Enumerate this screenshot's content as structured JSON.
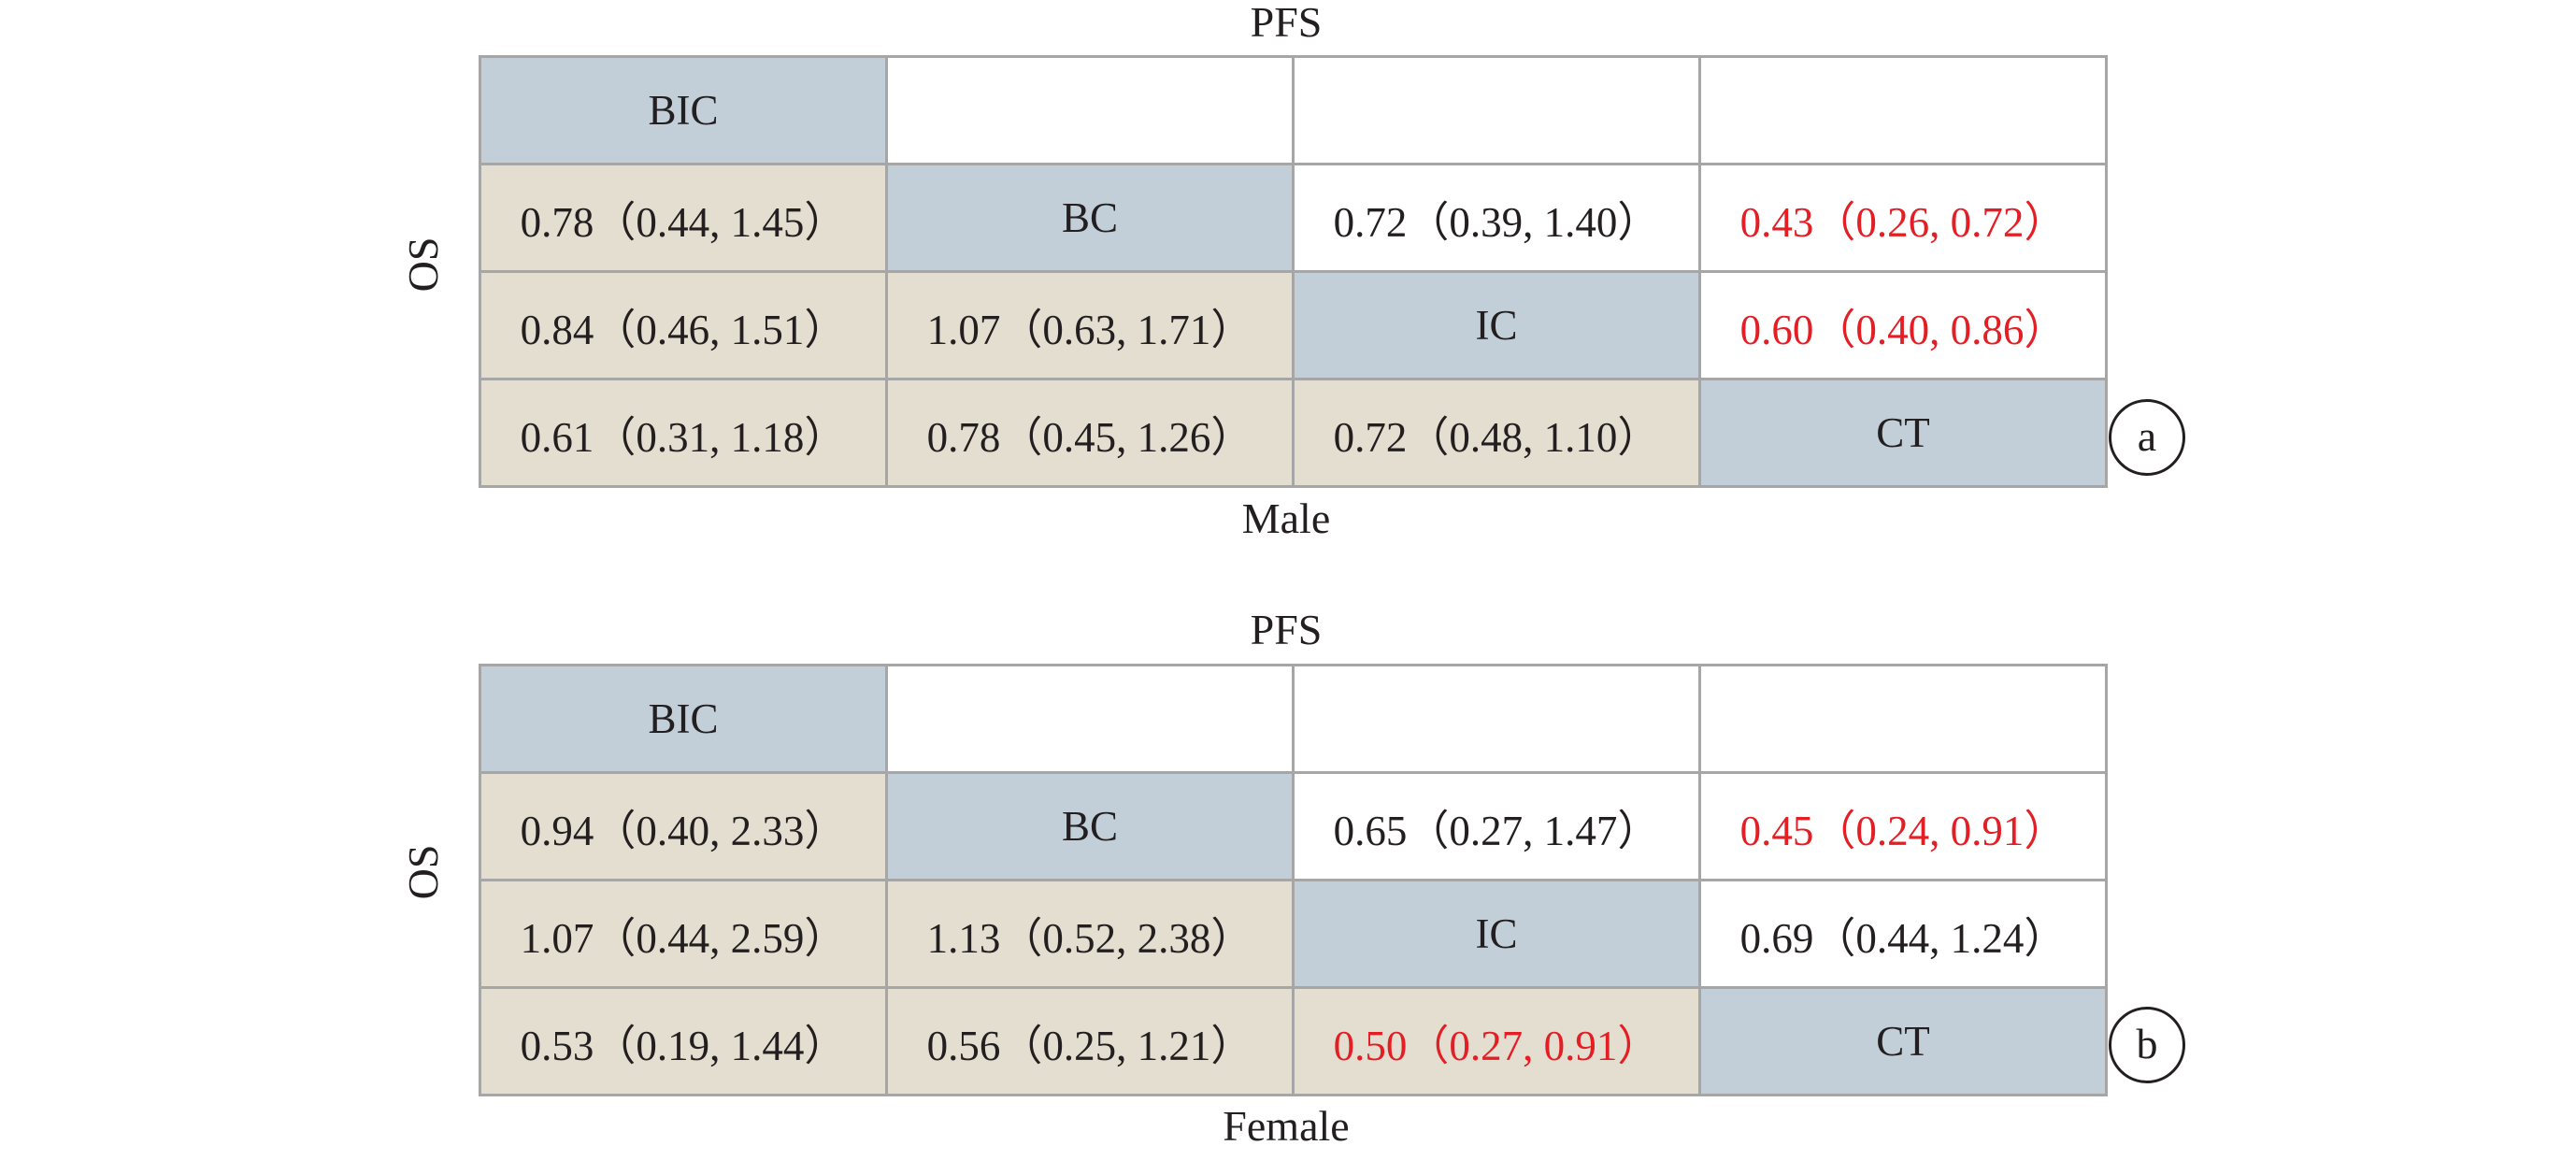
{
  "panels": [
    {
      "id": "a",
      "top_label": "PFS",
      "side_label": "OS",
      "bottom_label": "Male",
      "badge": "a",
      "rows": [
        [
          {
            "text": "BIC",
            "kind": "diag",
            "sig": false
          },
          {
            "text": "",
            "kind": "upper",
            "sig": false
          },
          {
            "text": "",
            "kind": "upper",
            "sig": false
          },
          {
            "text": "",
            "kind": "upper",
            "sig": false
          }
        ],
        [
          {
            "text": "0.78（0.44, 1.45）",
            "kind": "lower",
            "sig": false
          },
          {
            "text": "BC",
            "kind": "diag",
            "sig": false
          },
          {
            "text": "0.72（0.39, 1.40）",
            "kind": "upper",
            "sig": false
          },
          {
            "text": "0.43（0.26, 0.72）",
            "kind": "upper",
            "sig": true
          }
        ],
        [
          {
            "text": "0.84（0.46, 1.51）",
            "kind": "lower",
            "sig": false
          },
          {
            "text": "1.07（0.63, 1.71）",
            "kind": "lower",
            "sig": false
          },
          {
            "text": "IC",
            "kind": "diag",
            "sig": false
          },
          {
            "text": "0.60（0.40, 0.86）",
            "kind": "upper",
            "sig": true
          }
        ],
        [
          {
            "text": "0.61（0.31, 1.18）",
            "kind": "lower",
            "sig": false
          },
          {
            "text": "0.78（0.45, 1.26）",
            "kind": "lower",
            "sig": false
          },
          {
            "text": "0.72（0.48, 1.10）",
            "kind": "lower",
            "sig": false
          },
          {
            "text": "CT",
            "kind": "diag",
            "sig": false
          }
        ]
      ]
    },
    {
      "id": "b",
      "top_label": "PFS",
      "side_label": "OS",
      "bottom_label": "Female",
      "badge": "b",
      "rows": [
        [
          {
            "text": "BIC",
            "kind": "diag",
            "sig": false
          },
          {
            "text": "",
            "kind": "upper",
            "sig": false
          },
          {
            "text": "",
            "kind": "upper",
            "sig": false
          },
          {
            "text": "",
            "kind": "upper",
            "sig": false
          }
        ],
        [
          {
            "text": "0.94（0.40, 2.33）",
            "kind": "lower",
            "sig": false
          },
          {
            "text": "BC",
            "kind": "diag",
            "sig": false
          },
          {
            "text": "0.65（0.27, 1.47）",
            "kind": "upper",
            "sig": false
          },
          {
            "text": "0.45（0.24, 0.91）",
            "kind": "upper",
            "sig": true
          }
        ],
        [
          {
            "text": "1.07（0.44, 2.59）",
            "kind": "lower",
            "sig": false
          },
          {
            "text": "1.13（0.52, 2.38）",
            "kind": "lower",
            "sig": false
          },
          {
            "text": "IC",
            "kind": "diag",
            "sig": false
          },
          {
            "text": "0.69（0.44, 1.24）",
            "kind": "upper",
            "sig": false
          }
        ],
        [
          {
            "text": "0.53（0.19, 1.44）",
            "kind": "lower",
            "sig": false
          },
          {
            "text": "0.56（0.25, 1.21）",
            "kind": "lower",
            "sig": false
          },
          {
            "text": "0.50（0.27, 0.91）",
            "kind": "lower",
            "sig": true
          },
          {
            "text": "CT",
            "kind": "diag",
            "sig": false
          }
        ]
      ]
    }
  ],
  "colors": {
    "diagonal": "#c2cfd8",
    "lower": "#e3ded0",
    "upper": "#ffffff",
    "significant": "#e31e24",
    "text": "#231f20",
    "border": "#a6a6a6"
  }
}
